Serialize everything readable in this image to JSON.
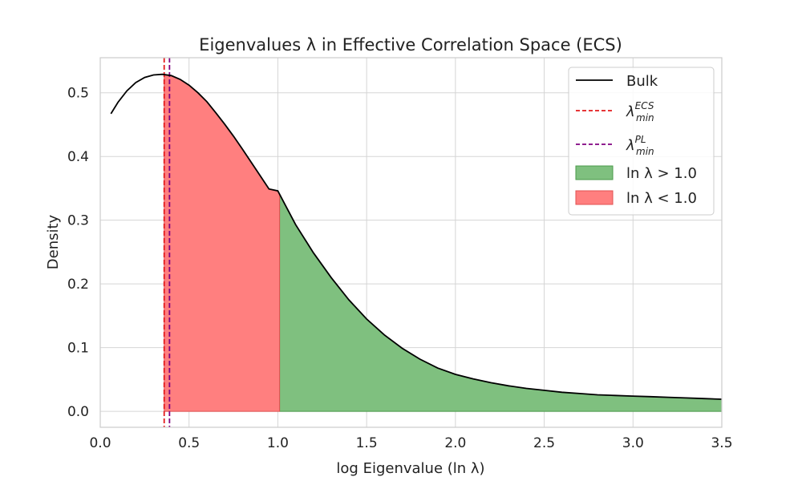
{
  "chart_data": {
    "type": "area",
    "title": "Eigenvalues λ in Effective Correlation Space (ECS)",
    "xlabel": "log Eigenvalue (ln λ)",
    "ylabel": "Density",
    "xlim": [
      0.0,
      3.5
    ],
    "ylim": [
      -0.025,
      0.555
    ],
    "grid": true,
    "xticks": [
      "0.0",
      "0.5",
      "1.0",
      "1.5",
      "2.0",
      "2.5",
      "3.0",
      "3.5"
    ],
    "yticks": [
      "0.0",
      "0.1",
      "0.2",
      "0.3",
      "0.4",
      "0.5"
    ],
    "xtick_values": [
      0.0,
      0.5,
      1.0,
      1.5,
      2.0,
      2.5,
      3.0,
      3.5
    ],
    "ytick_values": [
      0.0,
      0.1,
      0.2,
      0.3,
      0.4,
      0.5
    ],
    "legend_position": "top-right",
    "series": [
      {
        "name": "Bulk",
        "kind": "line",
        "color": "#000000",
        "x": [
          0.06,
          0.1,
          0.15,
          0.2,
          0.25,
          0.3,
          0.35,
          0.4,
          0.45,
          0.5,
          0.55,
          0.6,
          0.65,
          0.7,
          0.75,
          0.8,
          0.85,
          0.9,
          0.95,
          1.0,
          1.1,
          1.2,
          1.3,
          1.4,
          1.5,
          1.6,
          1.7,
          1.8,
          1.9,
          2.0,
          2.1,
          2.2,
          2.3,
          2.4,
          2.5,
          2.6,
          2.7,
          2.8,
          2.9,
          3.0,
          3.1,
          3.2,
          3.3,
          3.4,
          3.5
        ],
        "y": [
          0.467,
          0.485,
          0.503,
          0.516,
          0.524,
          0.528,
          0.529,
          0.527,
          0.521,
          0.512,
          0.5,
          0.486,
          0.469,
          0.451,
          0.432,
          0.412,
          0.391,
          0.37,
          0.349,
          0.346,
          0.293,
          0.249,
          0.21,
          0.175,
          0.145,
          0.12,
          0.099,
          0.082,
          0.068,
          0.058,
          0.051,
          0.045,
          0.04,
          0.036,
          0.033,
          0.03,
          0.028,
          0.026,
          0.025,
          0.024,
          0.023,
          0.022,
          0.021,
          0.02,
          0.019
        ]
      },
      {
        "name": "λ_min^ECS",
        "label_base": "λ",
        "label_sub": "min",
        "label_sup": "ECS",
        "kind": "vline",
        "color": "#e31a1c",
        "x": 0.36
      },
      {
        "name": "λ_min^PL",
        "label_base": "λ",
        "label_sub": "min",
        "label_sup": "PL",
        "kind": "vline",
        "color": "#800080",
        "x": 0.39
      },
      {
        "name": "ln λ > 1.0",
        "kind": "fill",
        "color": "#7fc07f",
        "edge": "#4a9a4a",
        "x_range": [
          1.01,
          3.5
        ]
      },
      {
        "name": "ln λ < 1.0",
        "kind": "fill",
        "color": "#ff7f7f",
        "edge": "#e05050",
        "x_range": [
          0.36,
          1.01
        ]
      }
    ],
    "legend": [
      {
        "label": "Bulk",
        "kind": "line"
      },
      {
        "label": "λ",
        "sub": "min",
        "sup": "ECS",
        "kind": "dashed-red"
      },
      {
        "label": "λ",
        "sub": "min",
        "sup": "PL",
        "kind": "dashed-purple"
      },
      {
        "label": "ln λ > 1.0",
        "kind": "patch-green"
      },
      {
        "label": "ln λ < 1.0",
        "kind": "patch-red"
      }
    ]
  }
}
